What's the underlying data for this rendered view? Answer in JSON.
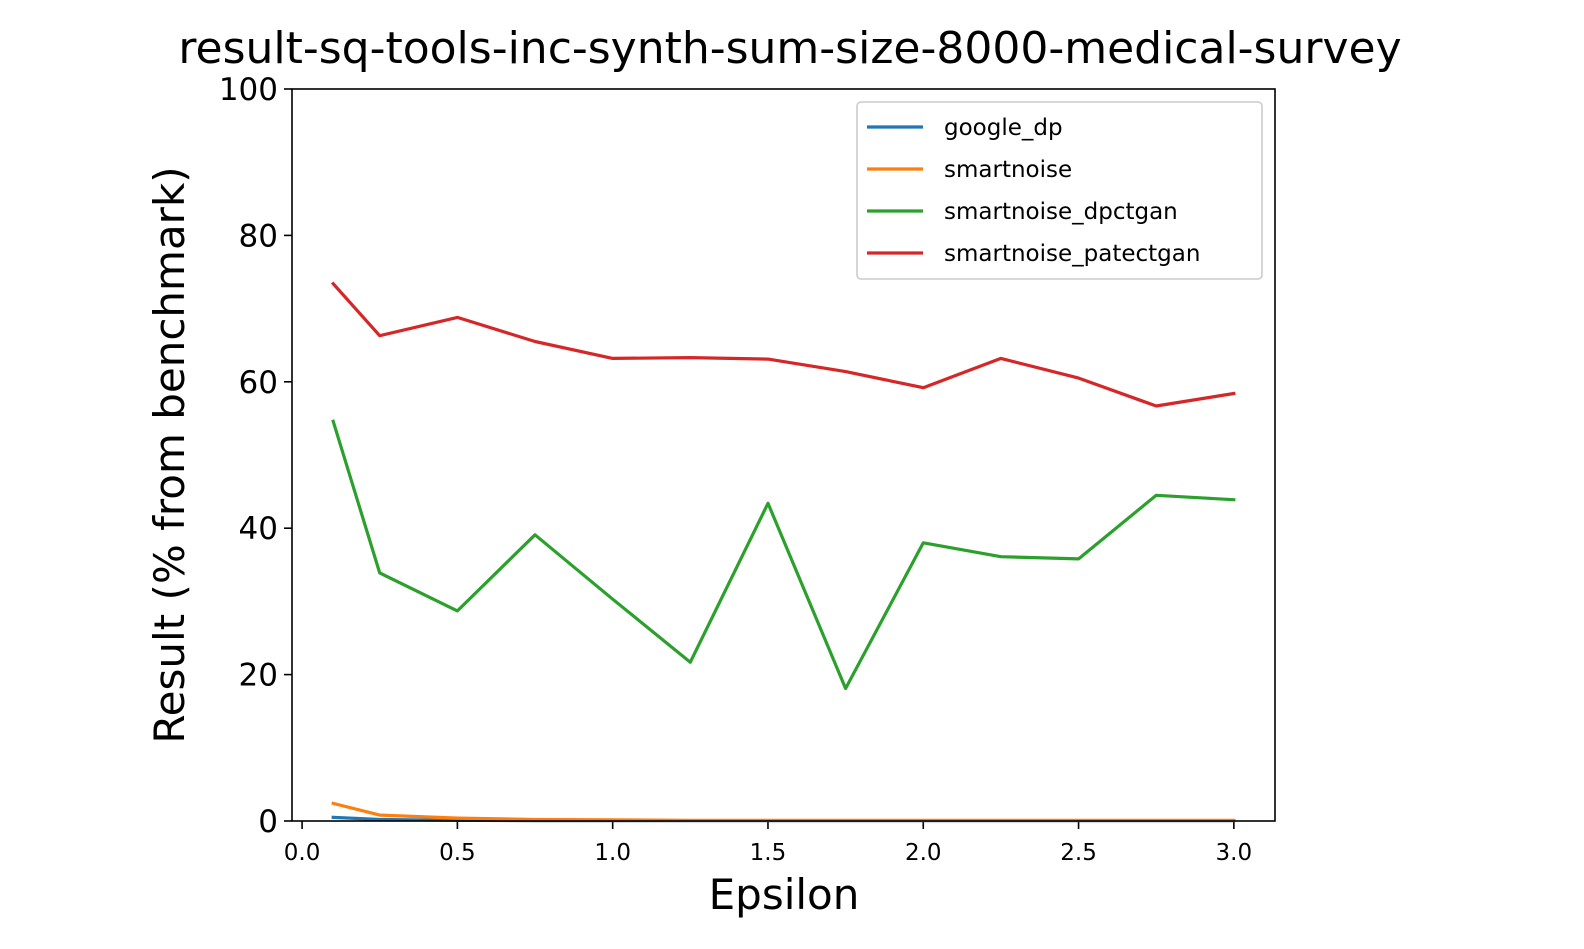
{
  "chart_data": {
    "type": "line",
    "title": "result-sq-tools-inc-synth-sum-size-8000-medical-survey",
    "xlabel": "Epsilon",
    "ylabel": "Result (% from benchmark)",
    "xlim": [
      -0.0325,
      3.1325
    ],
    "ylim": [
      0,
      100
    ],
    "xticks": [
      0.0,
      0.5,
      1.0,
      1.5,
      2.0,
      2.5,
      3.0
    ],
    "xtick_labels": [
      "0.0",
      "0.5",
      "1.0",
      "1.5",
      "2.0",
      "2.5",
      "3.0"
    ],
    "yticks": [
      0,
      20,
      40,
      60,
      80,
      100
    ],
    "ytick_labels": [
      "0",
      "20",
      "40",
      "60",
      "80",
      "100"
    ],
    "grid": false,
    "legend_position": "upper right",
    "x": [
      0.1,
      0.25,
      0.5,
      0.75,
      1.0,
      1.25,
      1.5,
      1.75,
      2.0,
      2.25,
      2.5,
      2.75,
      3.0
    ],
    "series": [
      {
        "name": "google_dp",
        "color": "#1f77b4",
        "values": [
          0.5,
          0.2,
          0.1,
          0.05,
          0.05,
          0.05,
          0.05,
          0.05,
          0.05,
          0.05,
          0.05,
          0.05,
          0.05
        ]
      },
      {
        "name": "smartnoise",
        "color": "#ff7f0e",
        "values": [
          2.4,
          0.8,
          0.4,
          0.2,
          0.15,
          0.1,
          0.1,
          0.1,
          0.1,
          0.1,
          0.1,
          0.1,
          0.1
        ]
      },
      {
        "name": "smartnoise_dpctgan",
        "color": "#2ca02c",
        "values": [
          54.6,
          33.9,
          28.7,
          39.1,
          30.3,
          21.7,
          43.4,
          18.1,
          38.0,
          36.1,
          35.8,
          44.5,
          43.9
        ]
      },
      {
        "name": "smartnoise_patectgan",
        "color": "#d62728",
        "values": [
          73.4,
          66.3,
          68.8,
          65.5,
          63.2,
          63.3,
          63.1,
          61.4,
          59.2,
          63.2,
          60.5,
          56.7,
          58.4
        ]
      }
    ]
  }
}
